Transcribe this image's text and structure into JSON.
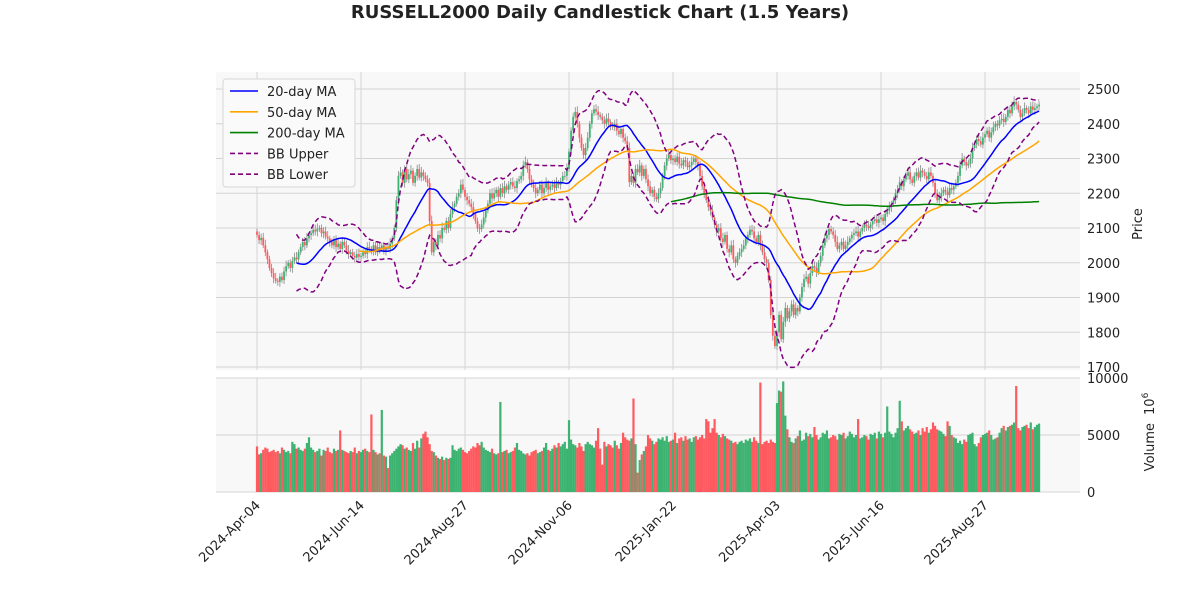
{
  "chart_data": {
    "type": "candlestick",
    "title": "RUSSELL2000 Daily Candlestick Chart (1.5 Years)",
    "ylabel": "Price",
    "volume_ylabel": "Volume",
    "volume_exponent": "10",
    "volume_exponent_power": "6",
    "ylim": [
      1680,
      2550
    ],
    "yticks": [
      "1700",
      "1800",
      "1900",
      "2000",
      "2100",
      "2200",
      "2300",
      "2400",
      "2500"
    ],
    "volume_ylim": [
      0,
      10000
    ],
    "volume_yticks": [
      "0",
      "5000",
      "10000"
    ],
    "xticks": [
      {
        "index": 0,
        "label": "2024-Apr-04"
      },
      {
        "index": 50,
        "label": "2024-Jun-14"
      },
      {
        "index": 100,
        "label": "2024-Aug-27"
      },
      {
        "index": 150,
        "label": "2024-Nov-06"
      },
      {
        "index": 200,
        "label": "2025-Jan-22"
      },
      {
        "index": 250,
        "label": "2025-Apr-03"
      },
      {
        "index": 300,
        "label": "2025-Jun-16"
      },
      {
        "index": 350,
        "label": "2025-Aug-27"
      }
    ],
    "grid": true,
    "legend_position": "top-left",
    "legend": [
      {
        "label": "20-day MA",
        "color": "#0000ff",
        "style": "solid",
        "window": 20
      },
      {
        "label": "50-day MA",
        "color": "#ffa500",
        "style": "solid",
        "window": 50
      },
      {
        "label": "200-day MA",
        "color": "#008000",
        "style": "solid",
        "window": 200
      },
      {
        "label": "BB Upper",
        "color": "#800080",
        "style": "dashed"
      },
      {
        "label": "BB Lower",
        "color": "#800080",
        "style": "dashed"
      }
    ],
    "colors": {
      "up": "#3cb371",
      "down": "#ff5a5f",
      "wick": "#888888"
    },
    "close": [
      2080,
      2065,
      2072,
      2050,
      2030,
      2010,
      1985,
      1970,
      1955,
      1948,
      1945,
      1960,
      1950,
      1975,
      1990,
      2000,
      1985,
      2005,
      2015,
      2010,
      2030,
      2045,
      2060,
      2050,
      2070,
      2080,
      2085,
      2095,
      2090,
      2097,
      2100,
      2085,
      2090,
      2075,
      2070,
      2060,
      2050,
      2065,
      2045,
      2055,
      2040,
      2060,
      2050,
      2035,
      2025,
      2030,
      2020,
      2015,
      2025,
      2017,
      2020,
      2030,
      2025,
      2045,
      2040,
      2035,
      2050,
      2030,
      2045,
      2040,
      2050,
      2035,
      2045,
      2040,
      2055,
      2070,
      2100,
      2180,
      2250,
      2260,
      2230,
      2270,
      2240,
      2255,
      2265,
      2230,
      2250,
      2270,
      2245,
      2260,
      2250,
      2240,
      2230,
      2120,
      2030,
      2060,
      2050,
      2080,
      2070,
      2100,
      2095,
      2120,
      2100,
      2140,
      2160,
      2170,
      2190,
      2200,
      2225,
      2210,
      2190,
      2180,
      2170,
      2160,
      2140,
      2120,
      2100,
      2097,
      2110,
      2130,
      2150,
      2170,
      2200,
      2185,
      2200,
      2210,
      2190,
      2215,
      2200,
      2220,
      2210,
      2225,
      2232,
      2220,
      2215,
      2235,
      2240,
      2250,
      2280,
      2290,
      2270,
      2240,
      2225,
      2215,
      2200,
      2210,
      2225,
      2200,
      2215,
      2230,
      2210,
      2220,
      2225,
      2215,
      2230,
      2225,
      2235,
      2250,
      2250,
      2270,
      2320,
      2380,
      2420,
      2434,
      2400,
      2360,
      2330,
      2310,
      2330,
      2360,
      2400,
      2430,
      2442,
      2435,
      2425,
      2420,
      2410,
      2400,
      2415,
      2405,
      2395,
      2390,
      2400,
      2380,
      2370,
      2385,
      2360,
      2350,
      2330,
      2232,
      2250,
      2230,
      2270,
      2260,
      2280,
      2250,
      2270,
      2240,
      2220,
      2200,
      2210,
      2190,
      2183,
      2200,
      2215,
      2250,
      2280,
      2300,
      2310,
      2295,
      2300,
      2290,
      2305,
      2285,
      2280,
      2295,
      2290,
      2275,
      2280,
      2290,
      2300,
      2290,
      2280,
      2250,
      2220,
      2200,
      2180,
      2160,
      2150,
      2130,
      2110,
      2090,
      2100,
      2070,
      2060,
      2080,
      2040,
      2030,
      2050,
      2010,
      2000,
      2020,
      2030,
      2040,
      2050,
      2070,
      2080,
      2095,
      2090,
      2070,
      2060,
      2080,
      2050,
      2030,
      2010,
      2000,
      1950,
      1850,
      1790,
      1760,
      1800,
      1850,
      1780,
      1830,
      1870,
      1840,
      1860,
      1880,
      1850,
      1870,
      1860,
      1900,
      1930,
      1953,
      1960,
      1940,
      1970,
      1990,
      1985,
      1973,
      2000,
      2020,
      2050,
      2070,
      2080,
      2097,
      2090,
      2080,
      2060,
      2040,
      2050,
      2060,
      2040,
      2050,
      2060,
      2070,
      2080,
      2085,
      2090,
      2075,
      2090,
      2100,
      2110,
      2105,
      2100,
      2110,
      2120,
      2125,
      2115,
      2125,
      2130,
      2120,
      2140,
      2150,
      2160,
      2170,
      2180,
      2200,
      2210,
      2232,
      2220,
      2240,
      2250,
      2260,
      2240,
      2230,
      2250,
      2260,
      2245,
      2265,
      2260,
      2250,
      2240,
      2260,
      2250,
      2230,
      2200,
      2180,
      2190,
      2200,
      2210,
      2205,
      2195,
      2215,
      2210,
      2220,
      2230,
      2250,
      2280,
      2300,
      2290,
      2280,
      2285,
      2300,
      2330,
      2340,
      2356,
      2350,
      2340,
      2360,
      2370,
      2380,
      2360,
      2375,
      2390,
      2400,
      2395,
      2410,
      2414,
      2405,
      2420,
      2440,
      2430,
      2450,
      2463,
      2455,
      2440,
      2420,
      2430,
      2445,
      2440,
      2430,
      2450,
      2440,
      2445,
      2450,
      2455
    ],
    "volume": [
      4000,
      3300,
      3400,
      3700,
      3900,
      3800,
      3500,
      3600,
      3700,
      3500,
      3600,
      3400,
      3900,
      3700,
      3500,
      3600,
      3400,
      4400,
      4200,
      3800,
      3900,
      3700,
      3600,
      3800,
      4300,
      4800,
      3900,
      3700,
      3500,
      3600,
      3800,
      3200,
      3700,
      3600,
      3900,
      3500,
      3400,
      3800,
      3600,
      3700,
      5400,
      3700,
      3600,
      3500,
      3400,
      3600,
      3500,
      3900,
      3400,
      3600,
      3500,
      3700,
      3800,
      3600,
      3500,
      6800,
      3700,
      3500,
      3300,
      3400,
      7200,
      3200,
      3100,
      2100,
      3200,
      3400,
      3600,
      3800,
      4000,
      4200,
      4100,
      3800,
      3900,
      3700,
      3600,
      4300,
      3800,
      4500,
      3900,
      4700,
      5100,
      5300,
      4800,
      4200,
      3600,
      3500,
      3200,
      3000,
      2900,
      3100,
      2800,
      3000,
      2900,
      3000,
      4100,
      3700,
      3600,
      3800,
      3900,
      3700,
      3500,
      3400,
      3600,
      3800,
      4000,
      3900,
      4300,
      4100,
      4400,
      3900,
      3700,
      3600,
      3500,
      3800,
      3400,
      3300,
      3400,
      7900,
      3500,
      3600,
      3700,
      3400,
      3500,
      3600,
      3900,
      4300,
      3700,
      3600,
      3400,
      3300,
      3400,
      3200,
      3500,
      3600,
      3700,
      3400,
      3500,
      3600,
      3900,
      4300,
      3700,
      3600,
      3800,
      4100,
      3900,
      4300,
      4000,
      4200,
      4400,
      3800,
      6300,
      4600,
      4200,
      4100,
      3900,
      4300,
      4000,
      3600,
      4200,
      4400,
      4200,
      4100,
      3900,
      4500,
      5600,
      3800,
      2400,
      4400,
      4000,
      4200,
      4100,
      3900,
      4500,
      4100,
      3800,
      4300,
      5200,
      4800,
      4600,
      4500,
      4700,
      8200,
      4200,
      1700,
      2800,
      3300,
      3600,
      4000,
      5000,
      4700,
      4500,
      4200,
      4400,
      4700,
      4600,
      4800,
      4500,
      4900,
      4400,
      4500,
      4600,
      5200,
      4300,
      4700,
      4800,
      4500,
      4900,
      4600,
      4700,
      4400,
      4800,
      4900,
      4600,
      4800,
      5000,
      4700,
      6400,
      6200,
      5200,
      5600,
      6400,
      5200,
      5000,
      4800,
      5100,
      4900,
      4700,
      4600,
      4500,
      4300,
      4400,
      4200,
      4400,
      4500,
      4300,
      4600,
      4500,
      4700,
      4400,
      4800,
      4500,
      4300,
      9600,
      4200,
      4400,
      4500,
      4300,
      4600,
      4400,
      4300,
      7800,
      8900,
      8800,
      9700,
      6700,
      5500,
      4800,
      4400,
      4300,
      4700,
      4900,
      5400,
      4500,
      4600,
      5200,
      4900,
      5100,
      4800,
      5700,
      5000,
      4600,
      4800,
      5200,
      5100,
      5400,
      4700,
      4800,
      5000,
      4900,
      4600,
      5100,
      5000,
      5200,
      4700,
      4900,
      5300,
      5100,
      4800,
      5000,
      6400,
      4700,
      4800,
      5000,
      4900,
      4600,
      5100,
      5000,
      5200,
      4700,
      5300,
      5100,
      4800,
      5200,
      7500,
      5300,
      5100,
      4800,
      5200,
      5600,
      8000,
      6200,
      5400,
      5600,
      5800,
      5500,
      5300,
      5100,
      5200,
      5400,
      5000,
      5600,
      5300,
      5700,
      5200,
      5500,
      6100,
      5800,
      5500,
      5400,
      5300,
      5100,
      4900,
      6200,
      5800,
      5000,
      4800,
      4700,
      4300,
      4500,
      4200,
      4600,
      4400,
      5000,
      5100,
      5200,
      4200,
      4000,
      4300,
      4800,
      5000,
      5100,
      5200,
      5400,
      5000,
      4600,
      4700,
      4800,
      5200,
      5600,
      5800,
      5400,
      5700,
      5800,
      5900,
      6100,
      9300,
      5600,
      5400,
      5700,
      5800,
      5900,
      5600,
      6100,
      5500,
      5700,
      5900,
      6000
    ]
  }
}
